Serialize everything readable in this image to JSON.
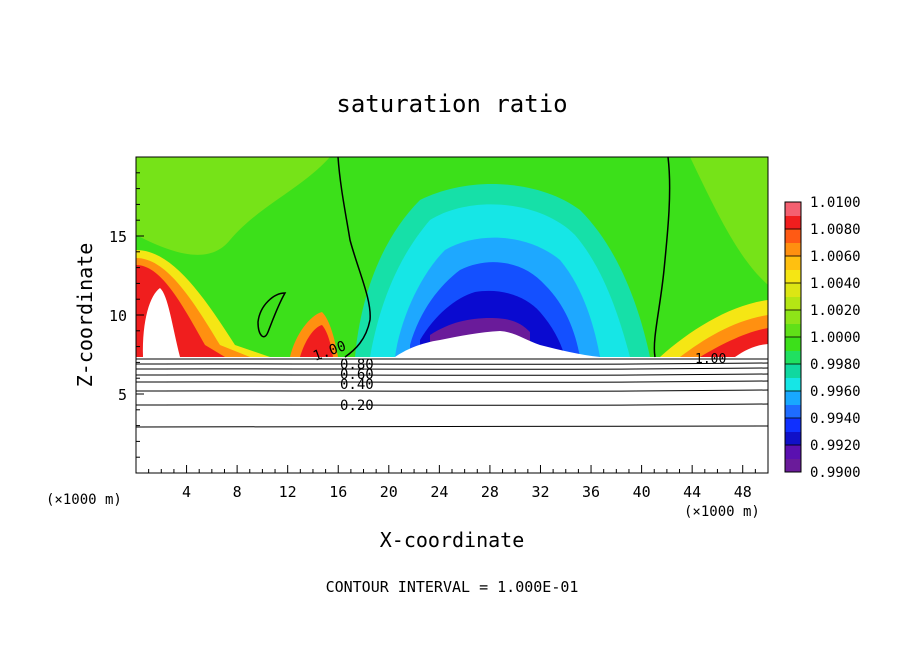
{
  "chart_data": {
    "type": "heatmap",
    "title": "saturation ratio",
    "xlabel": "X-coordinate",
    "ylabel": "Z-coordinate",
    "x_unit_left": "(×1000 m)",
    "x_unit_right": "(×1000 m)",
    "footer": "CONTOUR INTERVAL = 1.000E-01",
    "xlim": [
      0,
      50
    ],
    "ylim": [
      0,
      20
    ],
    "x_ticks": [
      4,
      8,
      12,
      16,
      20,
      24,
      28,
      32,
      36,
      40,
      44,
      48
    ],
    "y_ticks": [
      5,
      10,
      15
    ],
    "colorbar": {
      "min": 0.99,
      "max": 1.01,
      "ticks": [
        "0.9900",
        "0.9920",
        "0.9940",
        "0.9960",
        "0.9980",
        "1.0000",
        "1.0020",
        "1.0040",
        "1.0060",
        "1.0080",
        "1.0100"
      ]
    },
    "contour_labels": [
      "1.00",
      "1.00",
      "0.80",
      "0.60",
      "0.40",
      "0.20"
    ],
    "contour_levels": [
      0.2,
      0.4,
      0.6,
      0.8,
      1.0
    ],
    "colors": {
      "purple": "#6a1b9a",
      "deep_blue": "#1010c8",
      "blue": "#1e6cff",
      "cyan": "#16e6e6",
      "teal": "#10d8a0",
      "green": "#3ce01a",
      "yellow_green": "#b4e614",
      "yellow": "#f5e614",
      "orange": "#ff9010",
      "red": "#f01e1e",
      "pink": "#f7a0a8"
    }
  }
}
